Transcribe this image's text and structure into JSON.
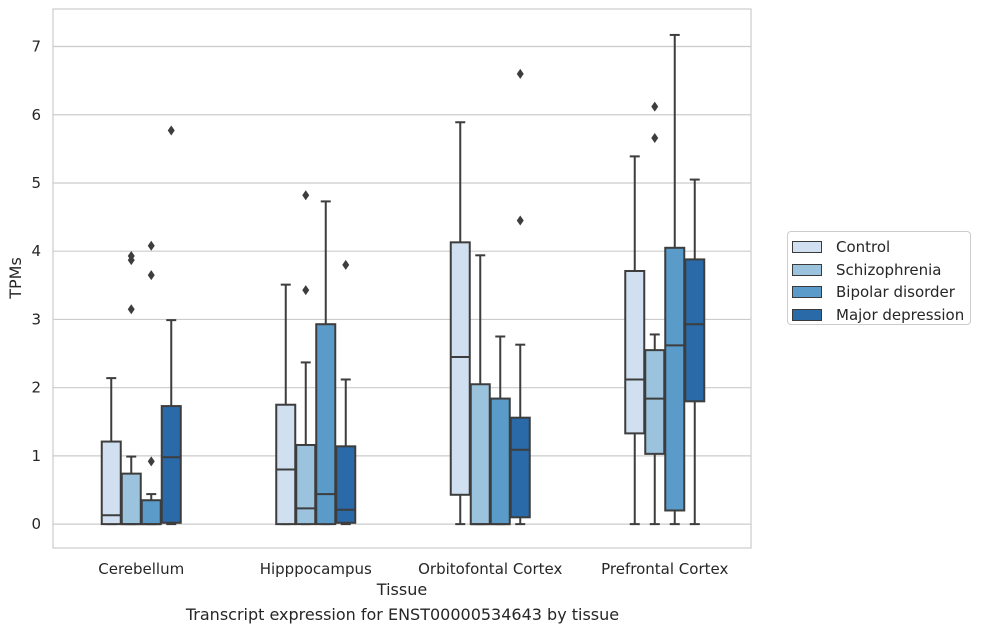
{
  "chart_data": {
    "type": "box",
    "xlabel": "Tissue",
    "ylabel": "TPMs",
    "caption": "Transcript expression for ENST00000534643 by tissue",
    "ylim": [
      -0.35,
      7.55
    ],
    "yticks": [
      "0",
      "1",
      "2",
      "3",
      "4",
      "5",
      "6",
      "7"
    ],
    "grid": true,
    "legend_placement": "right",
    "categories": [
      "Cerebellum",
      "Hipppocampus",
      "Orbitofontal Cortex",
      "Prefrontal Cortex"
    ],
    "series": [
      {
        "name": "Control",
        "color": "#d0e0f0",
        "boxes": [
          {
            "whislo": 0,
            "q1": 0,
            "med": 0.13,
            "q3": 1.21,
            "whishi": 2.14,
            "fliers": []
          },
          {
            "whislo": 0,
            "q1": 0,
            "med": 0.8,
            "q3": 1.75,
            "whishi": 3.51,
            "fliers": []
          },
          {
            "whislo": 0,
            "q1": 0.43,
            "med": 2.45,
            "q3": 4.13,
            "whishi": 5.89,
            "fliers": []
          },
          {
            "whislo": 0,
            "q1": 1.33,
            "med": 2.12,
            "q3": 3.71,
            "whishi": 5.39,
            "fliers": []
          }
        ]
      },
      {
        "name": "Schizophrenia",
        "color": "#9cc3dd",
        "boxes": [
          {
            "whislo": 0,
            "q1": 0,
            "med": 0,
            "q3": 0.74,
            "whishi": 0.99,
            "fliers": [
              3.15,
              3.87,
              3.93
            ]
          },
          {
            "whislo": 0,
            "q1": 0,
            "med": 0.23,
            "q3": 1.16,
            "whishi": 2.37,
            "fliers": [
              3.43,
              4.82
            ]
          },
          {
            "whislo": 0,
            "q1": 0,
            "med": 0,
            "q3": 2.05,
            "whishi": 3.94,
            "fliers": []
          },
          {
            "whislo": 0,
            "q1": 1.03,
            "med": 1.84,
            "q3": 2.55,
            "whishi": 2.78,
            "fliers": [
              5.66,
              6.12
            ]
          }
        ]
      },
      {
        "name": "Bipolar disorder",
        "color": "#5a9bc9",
        "boxes": [
          {
            "whislo": 0,
            "q1": 0,
            "med": 0,
            "q3": 0.35,
            "whishi": 0.44,
            "fliers": [
              0.92,
              3.65,
              4.08
            ]
          },
          {
            "whislo": 0,
            "q1": 0,
            "med": 0.44,
            "q3": 2.93,
            "whishi": 4.73,
            "fliers": []
          },
          {
            "whislo": 0,
            "q1": 0,
            "med": 0,
            "q3": 1.84,
            "whishi": 2.75,
            "fliers": []
          },
          {
            "whislo": 0,
            "q1": 0.2,
            "med": 2.62,
            "q3": 4.05,
            "whishi": 7.17,
            "fliers": []
          }
        ]
      },
      {
        "name": "Major depression",
        "color": "#2a6aa8",
        "boxes": [
          {
            "whislo": 0,
            "q1": 0.02,
            "med": 0.98,
            "q3": 1.73,
            "whishi": 2.99,
            "fliers": [
              5.77
            ]
          },
          {
            "whislo": 0,
            "q1": 0.02,
            "med": 0.21,
            "q3": 1.14,
            "whishi": 2.12,
            "fliers": [
              3.8
            ]
          },
          {
            "whislo": 0,
            "q1": 0.1,
            "med": 1.09,
            "q3": 1.56,
            "whishi": 2.63,
            "fliers": [
              4.45,
              6.6
            ]
          },
          {
            "whislo": 0,
            "q1": 1.8,
            "med": 2.93,
            "q3": 3.88,
            "whishi": 5.05,
            "fliers": []
          }
        ]
      }
    ]
  }
}
